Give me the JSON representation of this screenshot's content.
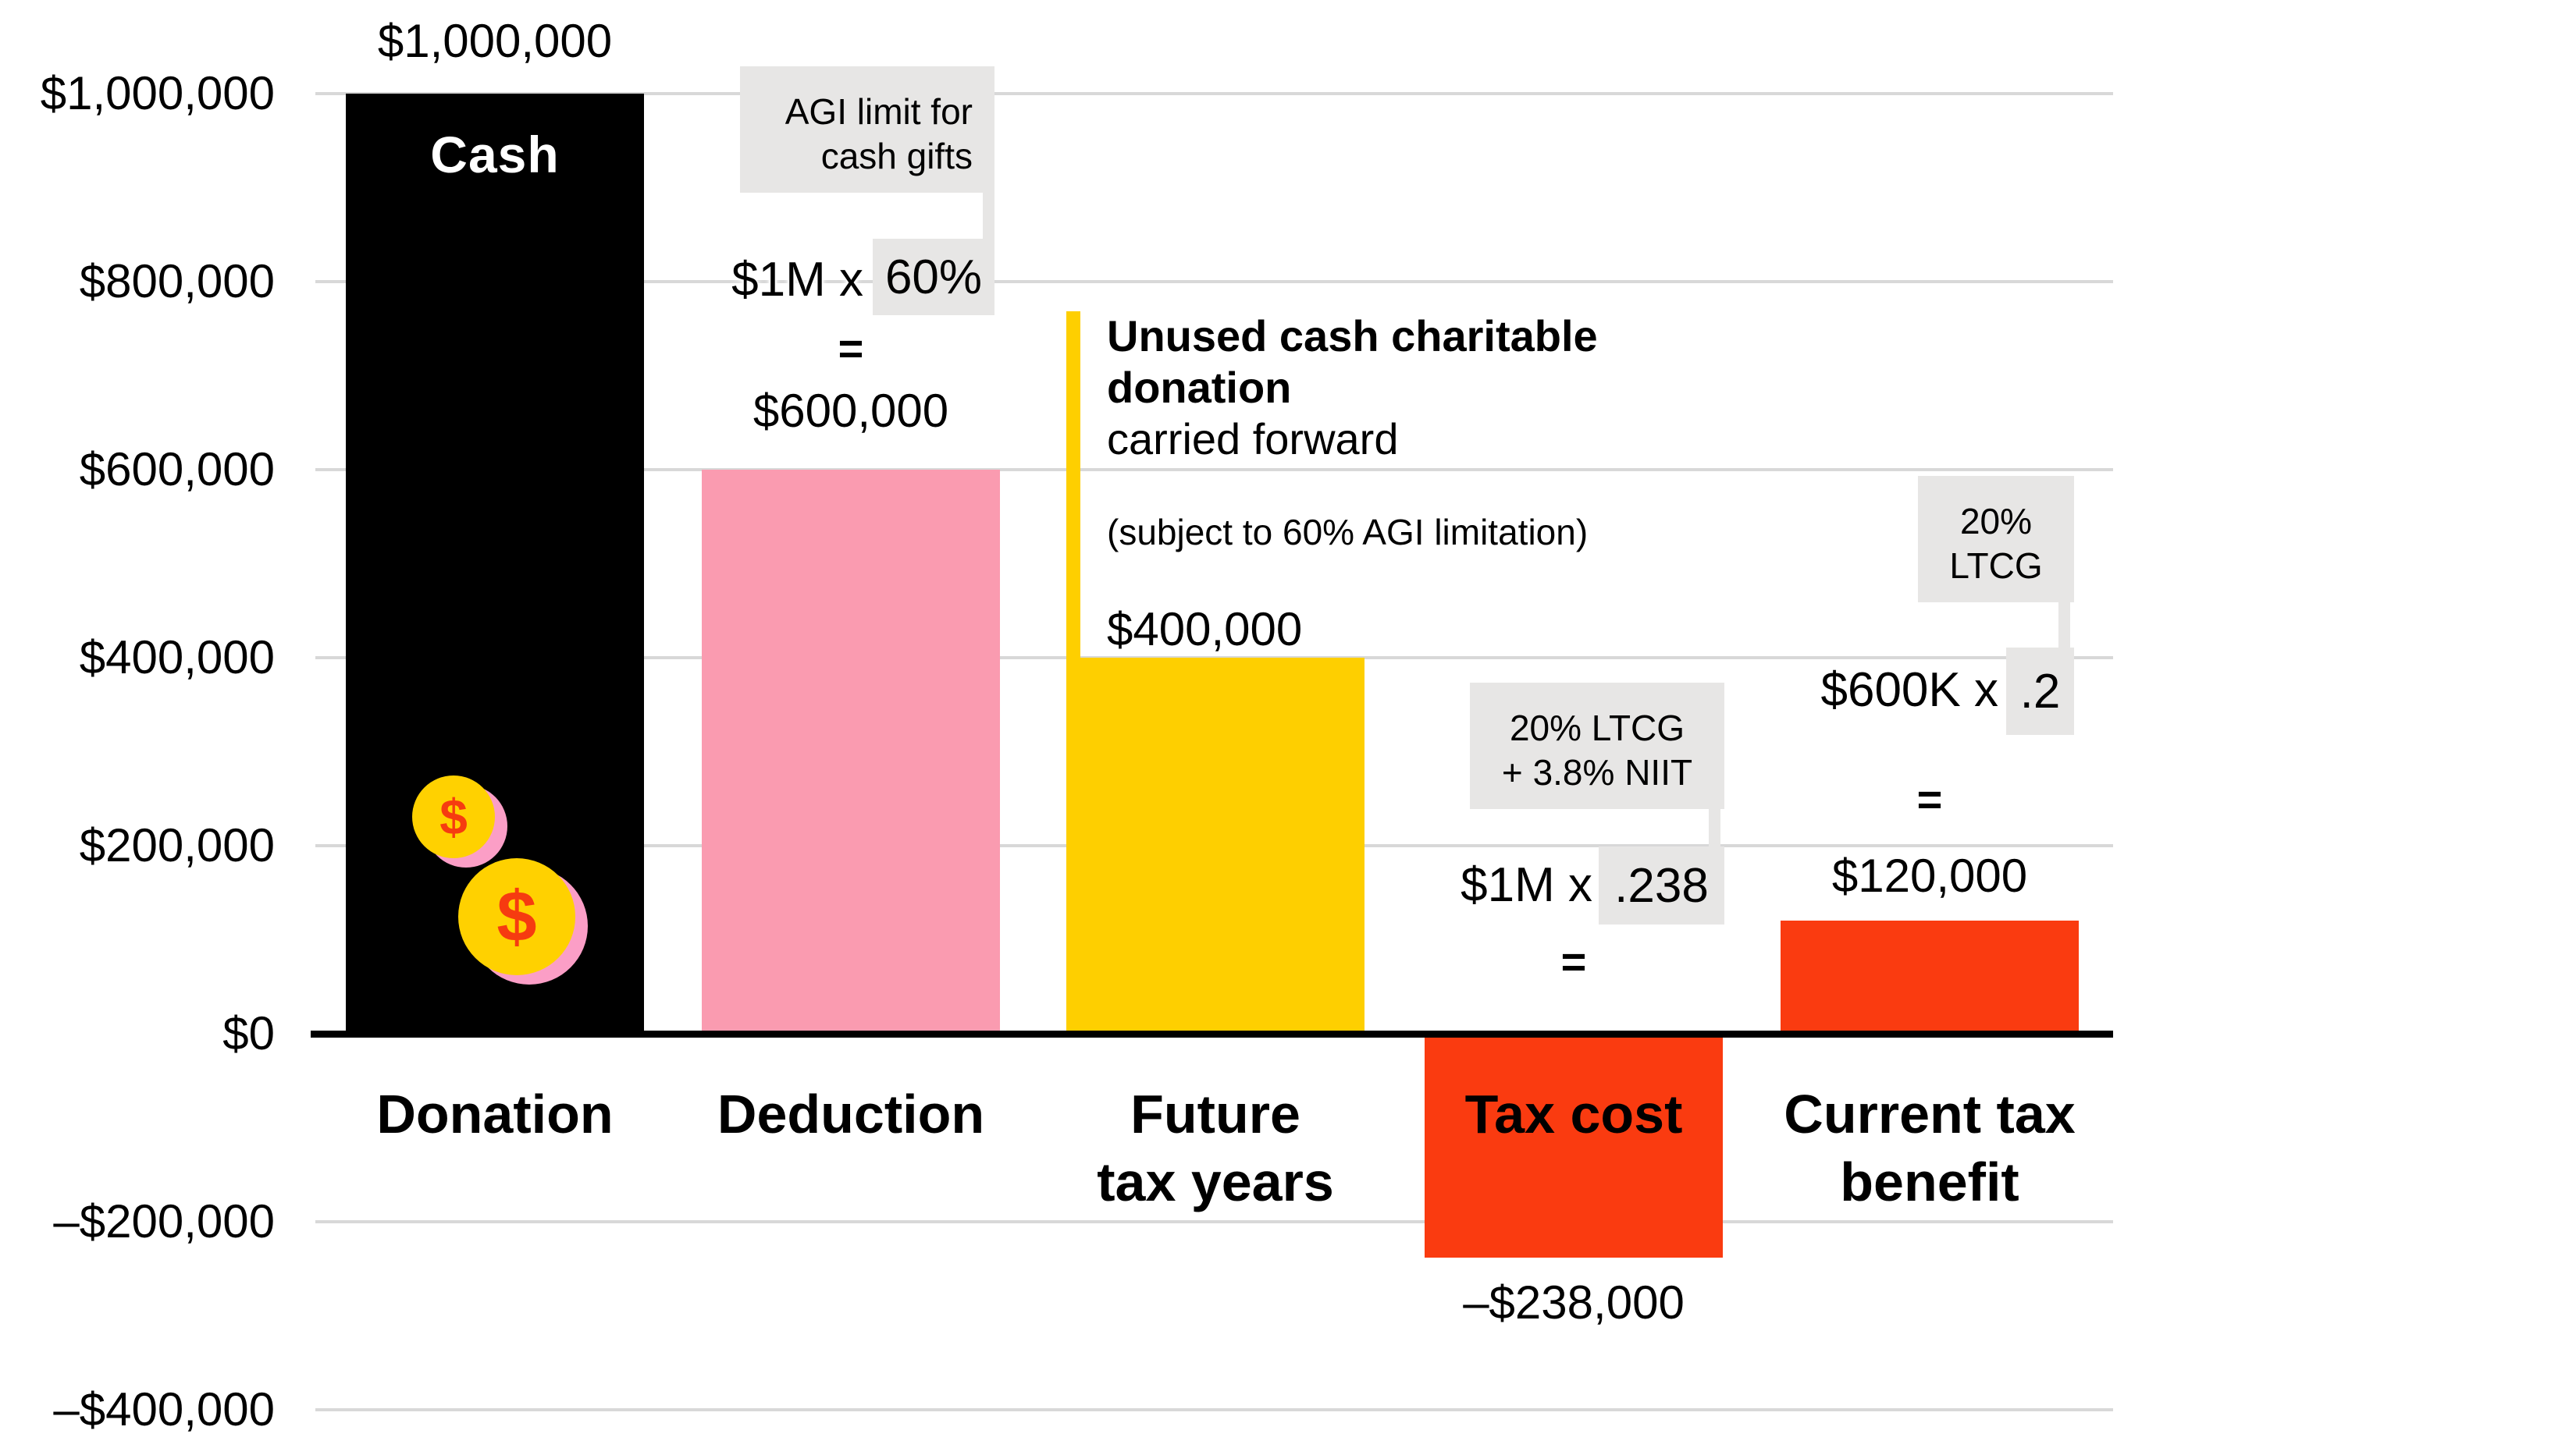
{
  "chart_data": {
    "type": "bar",
    "title": "",
    "xlabel": "",
    "ylabel": "",
    "categories": [
      "Donation",
      "Deduction",
      "Future\ntax years",
      "Tax cost",
      "Current tax\nbenefit"
    ],
    "values": [
      1000000,
      600000,
      400000,
      -238000,
      120000
    ],
    "bar_names": [
      "bar-donation",
      "bar-deduction",
      "bar-future-tax-years",
      "bar-tax-cost",
      "bar-current-tax-benefit"
    ],
    "bar_colors": [
      "#000000",
      "#fa9bb0",
      "#fecf00",
      "#fa3b10",
      "#fa3b10"
    ],
    "value_labels": [
      "$1,000,000",
      "$600,000",
      "$400,000",
      "–$238,000",
      "$120,000"
    ],
    "ylabel_ticks": [
      "$1,000,000",
      "$800,000",
      "$600,000",
      "$400,000",
      "$200,000",
      "$0",
      "–$200,000",
      "–$400,000"
    ],
    "tick_values": [
      1000000,
      800000,
      600000,
      400000,
      200000,
      0,
      -200000,
      -400000
    ],
    "ylim": [
      -400000,
      1000000
    ],
    "grid": true,
    "legend": false,
    "gridline_color": "#d8d8d8",
    "axis_color": "#000000"
  },
  "annotations": {
    "donation": {
      "value_label": "$1,000,000",
      "bar_label": "Cash",
      "coin_symbol": "$"
    },
    "deduction": {
      "callout_line1": "AGI limit for",
      "callout_line2": "cash gifts",
      "formula_pre": "$1M x",
      "formula_highlight": "60%",
      "equals": "=",
      "result": "$600,000"
    },
    "future": {
      "heading_bold_line1": "Unused cash charitable",
      "heading_bold_line2": "donation",
      "heading_regular": "carried forward",
      "note": "(subject to 60% AGI limitation)",
      "value_label": "$400,000"
    },
    "tax_cost": {
      "callout_line1": "20% LTCG",
      "callout_line2": "+ 3.8% NIIT",
      "formula_pre": "$1M x",
      "formula_highlight": ".238",
      "equals": "=",
      "value_label": "–$238,000"
    },
    "benefit": {
      "callout_line1": "20%",
      "callout_line2": "LTCG",
      "formula_pre": "$600K x",
      "formula_highlight": ".2",
      "equals": "=",
      "result": "$120,000"
    }
  },
  "colors": {
    "donation_bar": "#000000",
    "deduction_bar": "#fa9bb0",
    "future_bar": "#fecf00",
    "tax_bars": "#fa3b10",
    "callout_gray": "#e7e6e5",
    "gridline": "#d8d8d8",
    "coin_yellow": "#ffd100",
    "coin_shadow_pink": "#fb9ec6",
    "coin_symbol_red": "#f63b10",
    "cash_text": "#ffffff"
  }
}
